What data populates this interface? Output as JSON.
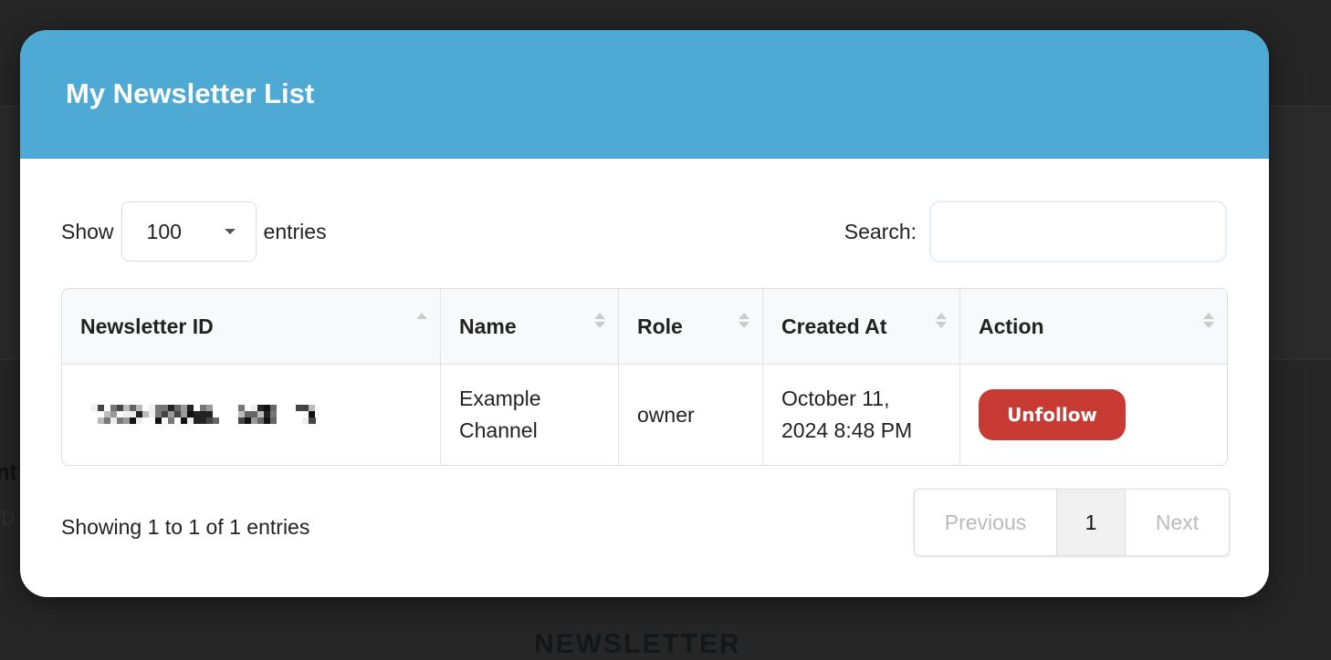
{
  "background": {
    "text_fragment_1": "nt",
    "text_fragment_2": "/D",
    "section_heading": "NEWSLETTER"
  },
  "modal": {
    "title": "My Newsletter List"
  },
  "controls": {
    "show_label": "Show",
    "page_length": "100",
    "entries_label": "entries",
    "search_label": "Search:",
    "search_value": ""
  },
  "table": {
    "columns": [
      {
        "label": "Newsletter ID",
        "sort": "ascending"
      },
      {
        "label": "Name",
        "sort": "none"
      },
      {
        "label": "Role",
        "sort": "none"
      },
      {
        "label": "Created At",
        "sort": "none"
      },
      {
        "label": "Action",
        "sort": "none"
      }
    ],
    "rows": [
      {
        "newsletter_id": "[pixelated/redacted]",
        "name": "Example Channel",
        "role": "owner",
        "created_at": "October 11, 2024 8:48 PM",
        "action": "Unfollow"
      }
    ]
  },
  "footer": {
    "info": "Showing 1 to 1 of 1 entries",
    "previous": "Previous",
    "current_page": "1",
    "next": "Next"
  },
  "colors": {
    "header": "#4ea9d5",
    "unfollow": "#c83b34"
  }
}
